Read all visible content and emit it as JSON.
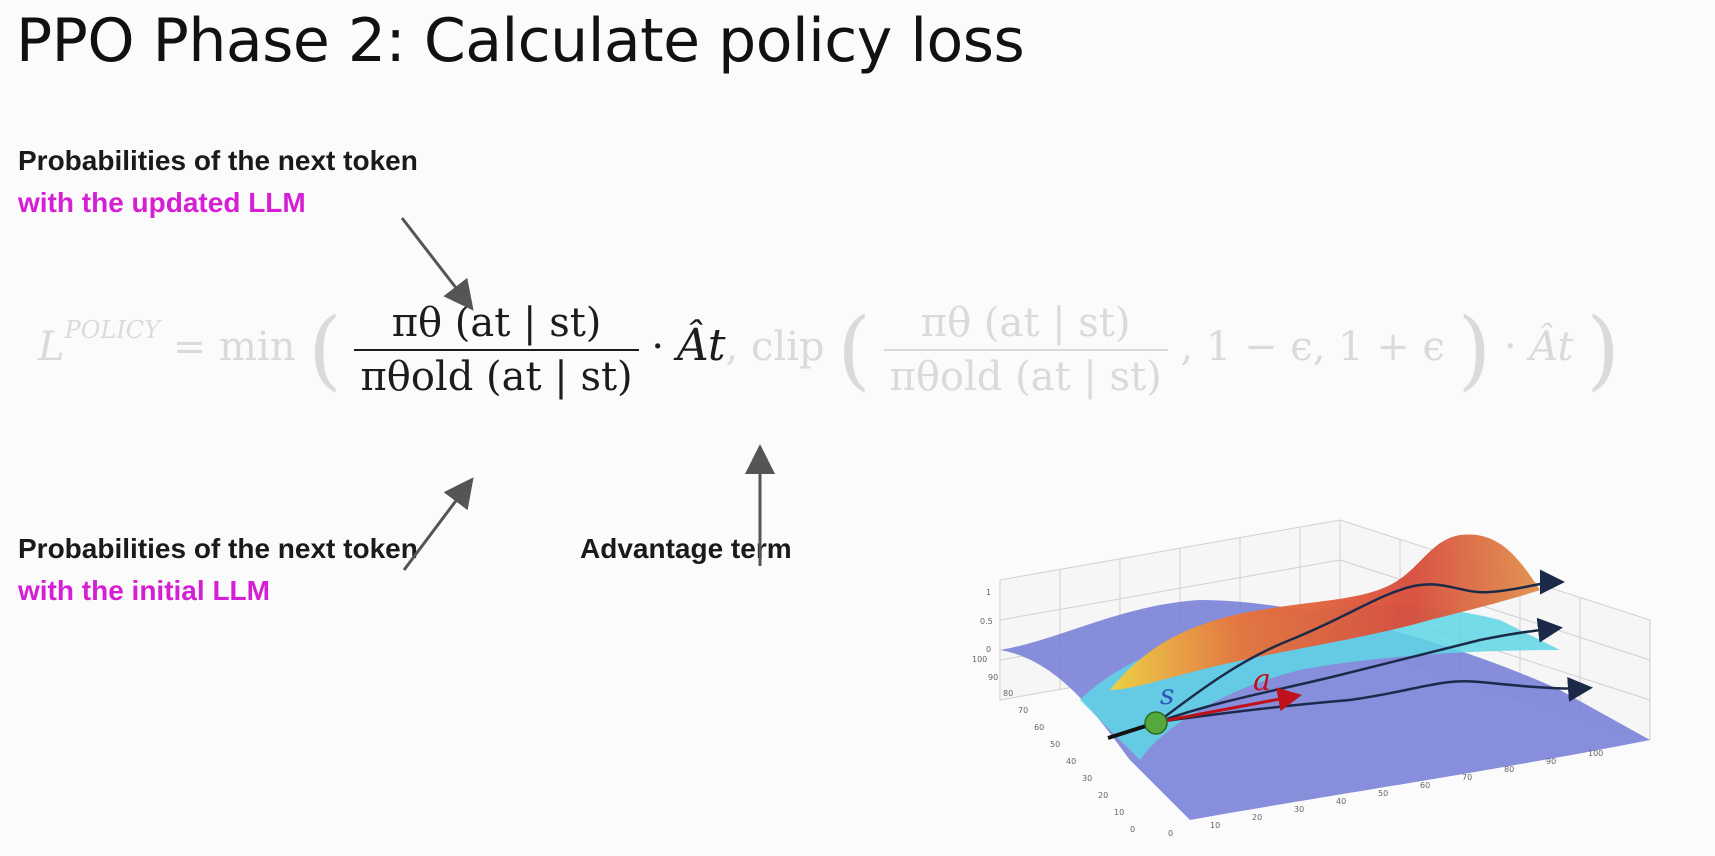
{
  "slide": {
    "title": "PPO Phase 2: Calculate policy loss"
  },
  "callouts": {
    "updated": {
      "line1": "Probabilities of the next token",
      "line2": "with the updated LLM"
    },
    "initial": {
      "line1": "Probabilities of the next token",
      "line2": "with the initial LLM"
    },
    "advantage": {
      "label": "Advantage term"
    }
  },
  "formula": {
    "lhs": "L",
    "lhs_sup": "POLICY",
    "equals_min": "= min",
    "open_paren": "(",
    "ratio_num": "πθ (at | st)",
    "ratio_den": "πθold (at | st)",
    "dot": "·",
    "advantage": "Ât",
    "clip_word": ", clip",
    "clip_open": "(",
    "clip_num": "πθ (at | st)",
    "clip_den": "πθold (at | st)",
    "clip_bounds": ", 1 − ϵ, 1 + ϵ",
    "clip_close": ")",
    "dot2": "·",
    "advantage2": "Ât",
    "close_paren": ")"
  },
  "surface_plot": {
    "state_label": "s",
    "action_label": "a",
    "z_ticks": [
      "1",
      "0.5",
      "0"
    ],
    "y_ticks": [
      "100",
      "90",
      "80",
      "70",
      "60",
      "50",
      "40",
      "30",
      "20",
      "10",
      "0"
    ],
    "x_ticks": [
      "0",
      "10",
      "20",
      "30",
      "40",
      "50",
      "60",
      "70",
      "80",
      "90",
      "100"
    ],
    "colors": {
      "low": "#6f78d8",
      "mid": "#5fd6e6",
      "high": "#f4d03f",
      "peak": "#e0483a",
      "state_point": "#55a83c",
      "action_arrow": "#c0101a",
      "state_label": "#2a56b8"
    }
  },
  "colors": {
    "accent": "#d51fd5",
    "text": "#1a1a1a",
    "faded": "#dadada",
    "arrow": "#555555"
  }
}
